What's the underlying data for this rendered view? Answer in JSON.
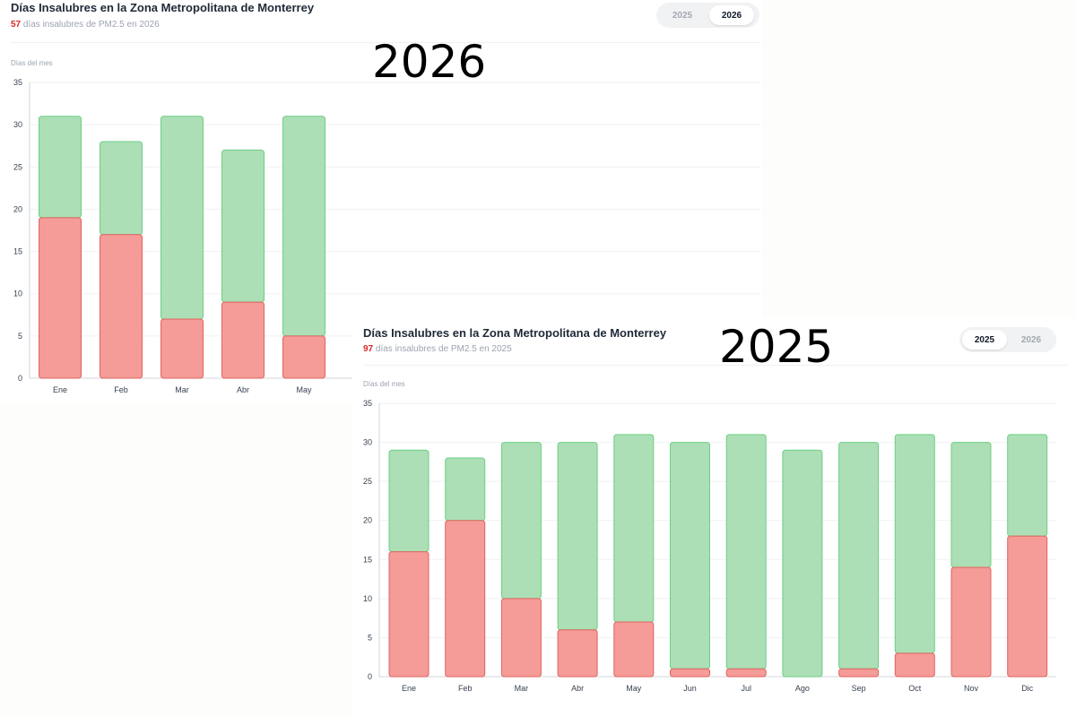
{
  "colors": {
    "unhealthy_fill": "#f59b98",
    "unhealthy_stroke": "#e0645f",
    "healthy_fill": "#acdfb6",
    "healthy_stroke": "#6ccf84",
    "count_accent": "#dc2626",
    "grid": "#eff1f3"
  },
  "overlay_labels": {
    "top": "2026",
    "bottom": "2025"
  },
  "panels": {
    "p2026": {
      "title": "Días Insalubres en la Zona Metropolitana de Monterrey",
      "count": "57",
      "subtitle_rest": " días insalubres de PM2.5 en 2026",
      "toggle": [
        "2025",
        "2026"
      ],
      "active_year": "2026",
      "ylabel": "Días del mes"
    },
    "p2025": {
      "title": "Días Insalubres en la Zona Metropolitana de Monterrey",
      "count": "97",
      "subtitle_rest": " días insalubres de PM2.5 en 2025",
      "toggle": [
        "2025",
        "2026"
      ],
      "active_year": "2025",
      "ylabel": "Días del mes"
    }
  },
  "chart_data": [
    {
      "type": "bar",
      "stacked": true,
      "year": "2026",
      "categories": [
        "Ene",
        "Feb",
        "Mar",
        "Abr",
        "May"
      ],
      "series": [
        {
          "values": [
            19,
            17,
            7,
            9,
            5
          ],
          "color": "#f59b98"
        },
        {
          "values": [
            12,
            11,
            24,
            18,
            26
          ],
          "color": "#acdfb6"
        }
      ],
      "ylabel": "Días del mes",
      "ylim": [
        0,
        35
      ],
      "yticks": [
        0,
        5,
        10,
        15,
        20,
        25,
        30,
        35
      ],
      "grid": true
    },
    {
      "type": "bar",
      "stacked": true,
      "year": "2025",
      "categories": [
        "Ene",
        "Feb",
        "Mar",
        "Abr",
        "May",
        "Jun",
        "Jul",
        "Ago",
        "Sep",
        "Oct",
        "Nov",
        "Dic"
      ],
      "series": [
        {
          "values": [
            16,
            20,
            10,
            6,
            7,
            1,
            1,
            0,
            1,
            3,
            14,
            18
          ],
          "color": "#f59b98"
        },
        {
          "values": [
            13,
            8,
            20,
            24,
            24,
            29,
            30,
            29,
            29,
            28,
            16,
            13
          ],
          "color": "#acdfb6"
        }
      ],
      "ylabel": "Días del mes",
      "ylim": [
        0,
        35
      ],
      "yticks": [
        0,
        5,
        10,
        15,
        20,
        25,
        30,
        35
      ],
      "grid": true
    }
  ]
}
